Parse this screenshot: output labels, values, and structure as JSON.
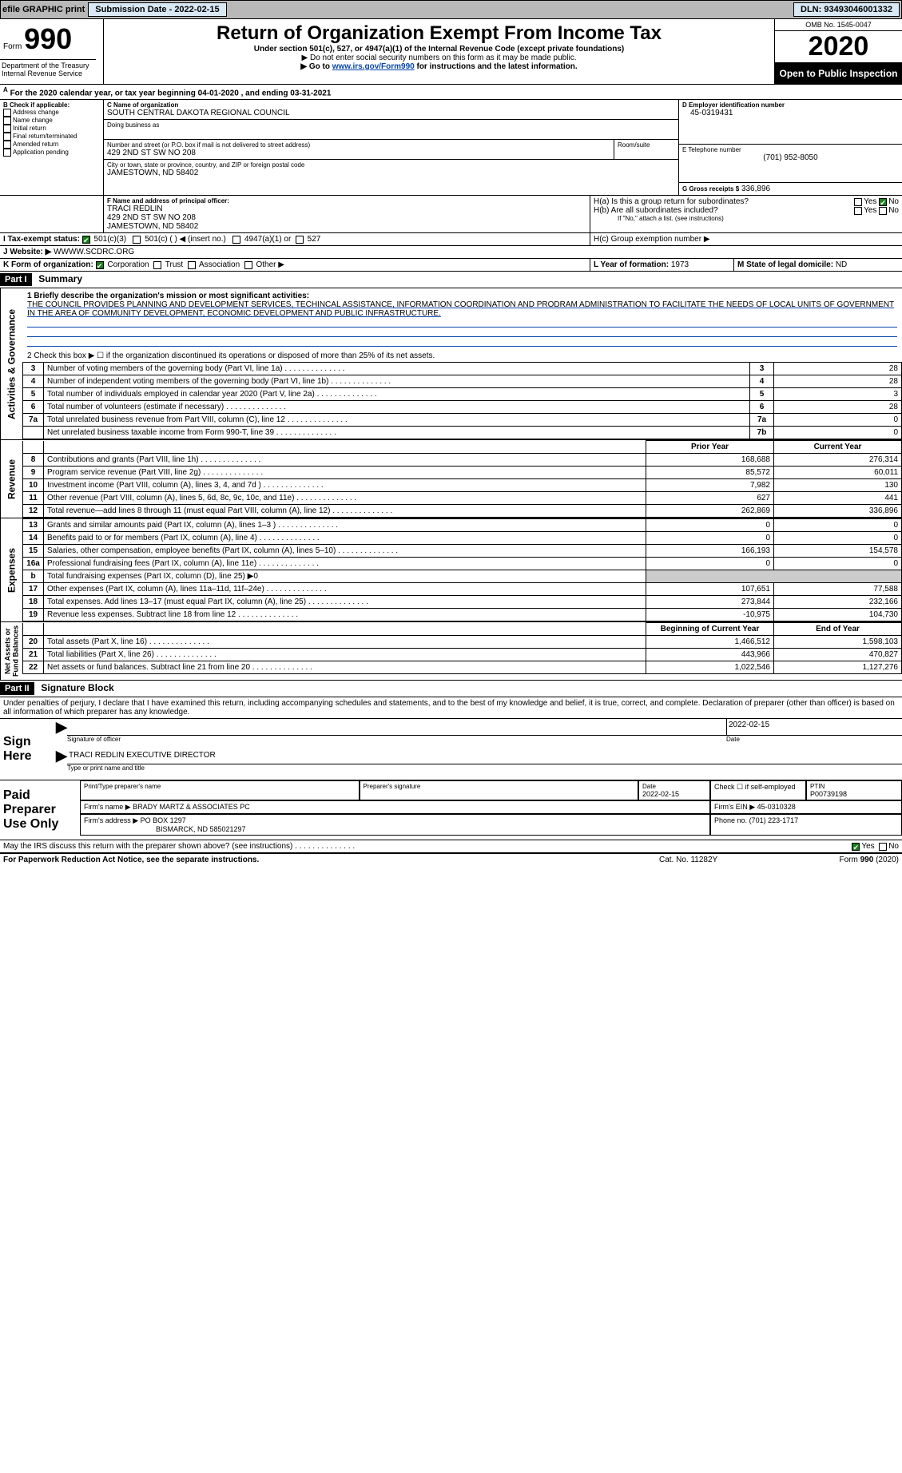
{
  "topbar": {
    "efile_label": "efile GRAPHIC print",
    "submission_label": "Submission Date - 2022-02-15",
    "dln_label": "DLN: 93493046001332"
  },
  "header": {
    "form_word": "Form",
    "form_num": "990",
    "dept": "Department of the Treasury\nInternal Revenue Service",
    "title": "Return of Organization Exempt From Income Tax",
    "sub": "Under section 501(c), 527, or 4947(a)(1) of the Internal Revenue Code (except private foundations)",
    "note1": "▶ Do not enter social security numbers on this form as it may be made public.",
    "note2_pre": "▶ Go to ",
    "note2_link": "www.irs.gov/Form990",
    "note2_post": " for instructions and the latest information.",
    "omb": "OMB No. 1545-0047",
    "year": "2020",
    "open": "Open to Public Inspection"
  },
  "periodA": "For the 2020 calendar year, or tax year beginning 04-01-2020    , and ending 03-31-2021",
  "boxB": {
    "label": "B Check if applicable:",
    "items": [
      "Address change",
      "Name change",
      "Initial return",
      "Final return/terminated",
      "Amended return",
      "Application pending"
    ]
  },
  "boxC": {
    "label": "C Name of organization",
    "name": "SOUTH CENTRAL DAKOTA REGIONAL COUNCIL",
    "dba_label": "Doing business as",
    "addr_label": "Number and street (or P.O. box if mail is not delivered to street address)",
    "room_label": "Room/suite",
    "addr": "429 2ND ST SW NO 208",
    "city_label": "City or town, state or province, country, and ZIP or foreign postal code",
    "city": "JAMESTOWN, ND  58402"
  },
  "boxD": {
    "label": "D Employer identification number",
    "val": "45-0319431"
  },
  "boxE": {
    "label": "E Telephone number",
    "val": "(701) 952-8050"
  },
  "boxG": {
    "label": "G Gross receipts $",
    "val": "336,896"
  },
  "boxF": {
    "label": "F  Name and address of principal officer:",
    "name": "TRACI REDLIN",
    "addr1": "429 2ND ST SW NO 208",
    "addr2": "JAMESTOWN, ND  58402"
  },
  "boxH": {
    "a": "H(a)  Is this a group return for subordinates?",
    "b": "H(b)  Are all subordinates included?",
    "b_note": "If \"No,\" attach a list. (see instructions)",
    "c": "H(c)  Group exemption number ▶",
    "yes": "Yes",
    "no": "No"
  },
  "boxI": {
    "label": "I    Tax-exempt status:",
    "o1": "501(c)(3)",
    "o2": "501(c) (  ) ◀ (insert no.)",
    "o3": "4947(a)(1) or",
    "o4": "527"
  },
  "boxJ": {
    "label": "J   Website: ▶",
    "val": "WWWW.SCDRC.ORG"
  },
  "boxK": {
    "label": "K Form of organization:",
    "o1": "Corporation",
    "o2": "Trust",
    "o3": "Association",
    "o4": "Other ▶"
  },
  "boxL": {
    "label": "L Year of formation:",
    "val": "1973"
  },
  "boxM": {
    "label": "M State of legal domicile:",
    "val": "ND"
  },
  "part1": {
    "bar": "Part I",
    "title": "Summary"
  },
  "summary": {
    "q1_label": "1  Briefly describe the organization's mission or most significant activities:",
    "q1_text": "THE COUNCIL PROVIDES PLANNING AND DEVELOPMENT SERVICES, TECHINCAL ASSISTANCE, INFORMATION COORDINATION AND PRODRAM ADMINISTRATION TO FACILITATE THE NEEDS OF LOCAL UNITS OF GOVERNMENT IN THE AREA OF COMMUNITY DEVELOPMENT, ECONOMIC DEVELOPMENT AND PUBLIC INFRASTRUCTURE.",
    "q2": "2  Check this box ▶ ☐ if the organization discontinued its operations or disposed of more than 25% of its net assets.",
    "lines": [
      {
        "n": "3",
        "t": "Number of voting members of the governing body (Part VI, line 1a)",
        "box": "3",
        "v": "28"
      },
      {
        "n": "4",
        "t": "Number of independent voting members of the governing body (Part VI, line 1b)",
        "box": "4",
        "v": "28"
      },
      {
        "n": "5",
        "t": "Total number of individuals employed in calendar year 2020 (Part V, line 2a)",
        "box": "5",
        "v": "3"
      },
      {
        "n": "6",
        "t": "Total number of volunteers (estimate if necessary)",
        "box": "6",
        "v": "28"
      },
      {
        "n": "7a",
        "t": "Total unrelated business revenue from Part VIII, column (C), line 12",
        "box": "7a",
        "v": "0"
      },
      {
        "n": "",
        "t": "Net unrelated business taxable income from Form 990-T, line 39",
        "box": "7b",
        "v": "0"
      }
    ]
  },
  "revexp": {
    "head_prior": "Prior Year",
    "head_current": "Current Year",
    "revenue": [
      {
        "n": "8",
        "t": "Contributions and grants (Part VIII, line 1h)",
        "p": "168,688",
        "c": "276,314"
      },
      {
        "n": "9",
        "t": "Program service revenue (Part VIII, line 2g)",
        "p": "85,572",
        "c": "60,011"
      },
      {
        "n": "10",
        "t": "Investment income (Part VIII, column (A), lines 3, 4, and 7d )",
        "p": "7,982",
        "c": "130"
      },
      {
        "n": "11",
        "t": "Other revenue (Part VIII, column (A), lines 5, 6d, 8c, 9c, 10c, and 11e)",
        "p": "627",
        "c": "441"
      },
      {
        "n": "12",
        "t": "Total revenue—add lines 8 through 11 (must equal Part VIII, column (A), line 12)",
        "p": "262,869",
        "c": "336,896"
      }
    ],
    "expenses": [
      {
        "n": "13",
        "t": "Grants and similar amounts paid (Part IX, column (A), lines 1–3 )",
        "p": "0",
        "c": "0"
      },
      {
        "n": "14",
        "t": "Benefits paid to or for members (Part IX, column (A), line 4)",
        "p": "0",
        "c": "0"
      },
      {
        "n": "15",
        "t": "Salaries, other compensation, employee benefits (Part IX, column (A), lines 5–10)",
        "p": "166,193",
        "c": "154,578"
      },
      {
        "n": "16a",
        "t": "Professional fundraising fees (Part IX, column (A), line 11e)",
        "p": "0",
        "c": "0"
      },
      {
        "n": "b",
        "t": "Total fundraising expenses (Part IX, column (D), line 25) ▶0",
        "p": "",
        "c": ""
      },
      {
        "n": "17",
        "t": "Other expenses (Part IX, column (A), lines 11a–11d, 11f–24e)",
        "p": "107,651",
        "c": "77,588"
      },
      {
        "n": "18",
        "t": "Total expenses. Add lines 13–17 (must equal Part IX, column (A), line 25)",
        "p": "273,844",
        "c": "232,166"
      },
      {
        "n": "19",
        "t": "Revenue less expenses. Subtract line 18 from line 12",
        "p": "-10,975",
        "c": "104,730"
      }
    ],
    "head_begin": "Beginning of Current Year",
    "head_end": "End of Year",
    "netassets": [
      {
        "n": "20",
        "t": "Total assets (Part X, line 16)",
        "p": "1,466,512",
        "c": "1,598,103"
      },
      {
        "n": "21",
        "t": "Total liabilities (Part X, line 26)",
        "p": "443,966",
        "c": "470,827"
      },
      {
        "n": "22",
        "t": "Net assets or fund balances. Subtract line 21 from line 20",
        "p": "1,022,546",
        "c": "1,127,276"
      }
    ]
  },
  "part2": {
    "bar": "Part II",
    "title": "Signature Block"
  },
  "sig": {
    "penalty": "Under penalties of perjury, I declare that I have examined this return, including accompanying schedules and statements, and to the best of my knowledge and belief, it is true, correct, and complete. Declaration of preparer (other than officer) is based on all information of which preparer has any knowledge.",
    "sign_here": "Sign Here",
    "sig_officer": "Signature of officer",
    "sig_date": "2022-02-15",
    "date_label": "Date",
    "officer_name": "TRACI REDLIN  EXECUTIVE DIRECTOR",
    "type_name": "Type or print name and title",
    "paid": "Paid Preparer Use Only",
    "prep_name_label": "Print/Type preparer's name",
    "prep_sig_label": "Preparer's signature",
    "prep_date_label": "Date",
    "prep_date": "2022-02-15",
    "check_self": "Check ☐ if self-employed",
    "ptin_label": "PTIN",
    "ptin": "P00739198",
    "firm_name_label": "Firm's name    ▶",
    "firm_name": "BRADY MARTZ & ASSOCIATES PC",
    "firm_ein_label": "Firm's EIN ▶",
    "firm_ein": "45-0310328",
    "firm_addr_label": "Firm's address ▶",
    "firm_addr1": "PO BOX 1297",
    "firm_addr2": "BISMARCK, ND  585021297",
    "phone_label": "Phone no.",
    "phone": "(701) 223-1717",
    "may_irs": "May the IRS discuss this return with the preparer shown above? (see instructions)",
    "yes": "Yes",
    "no": "No"
  },
  "footer": {
    "pra": "For Paperwork Reduction Act Notice, see the separate instructions.",
    "cat": "Cat. No. 11282Y",
    "form": "Form 990 (2020)"
  },
  "colors": {
    "topbar_bg": "#b8b8b8",
    "btn_bg": "#d9e8f5",
    "link": "#0645ad",
    "check_green": "#1a7f1a"
  }
}
